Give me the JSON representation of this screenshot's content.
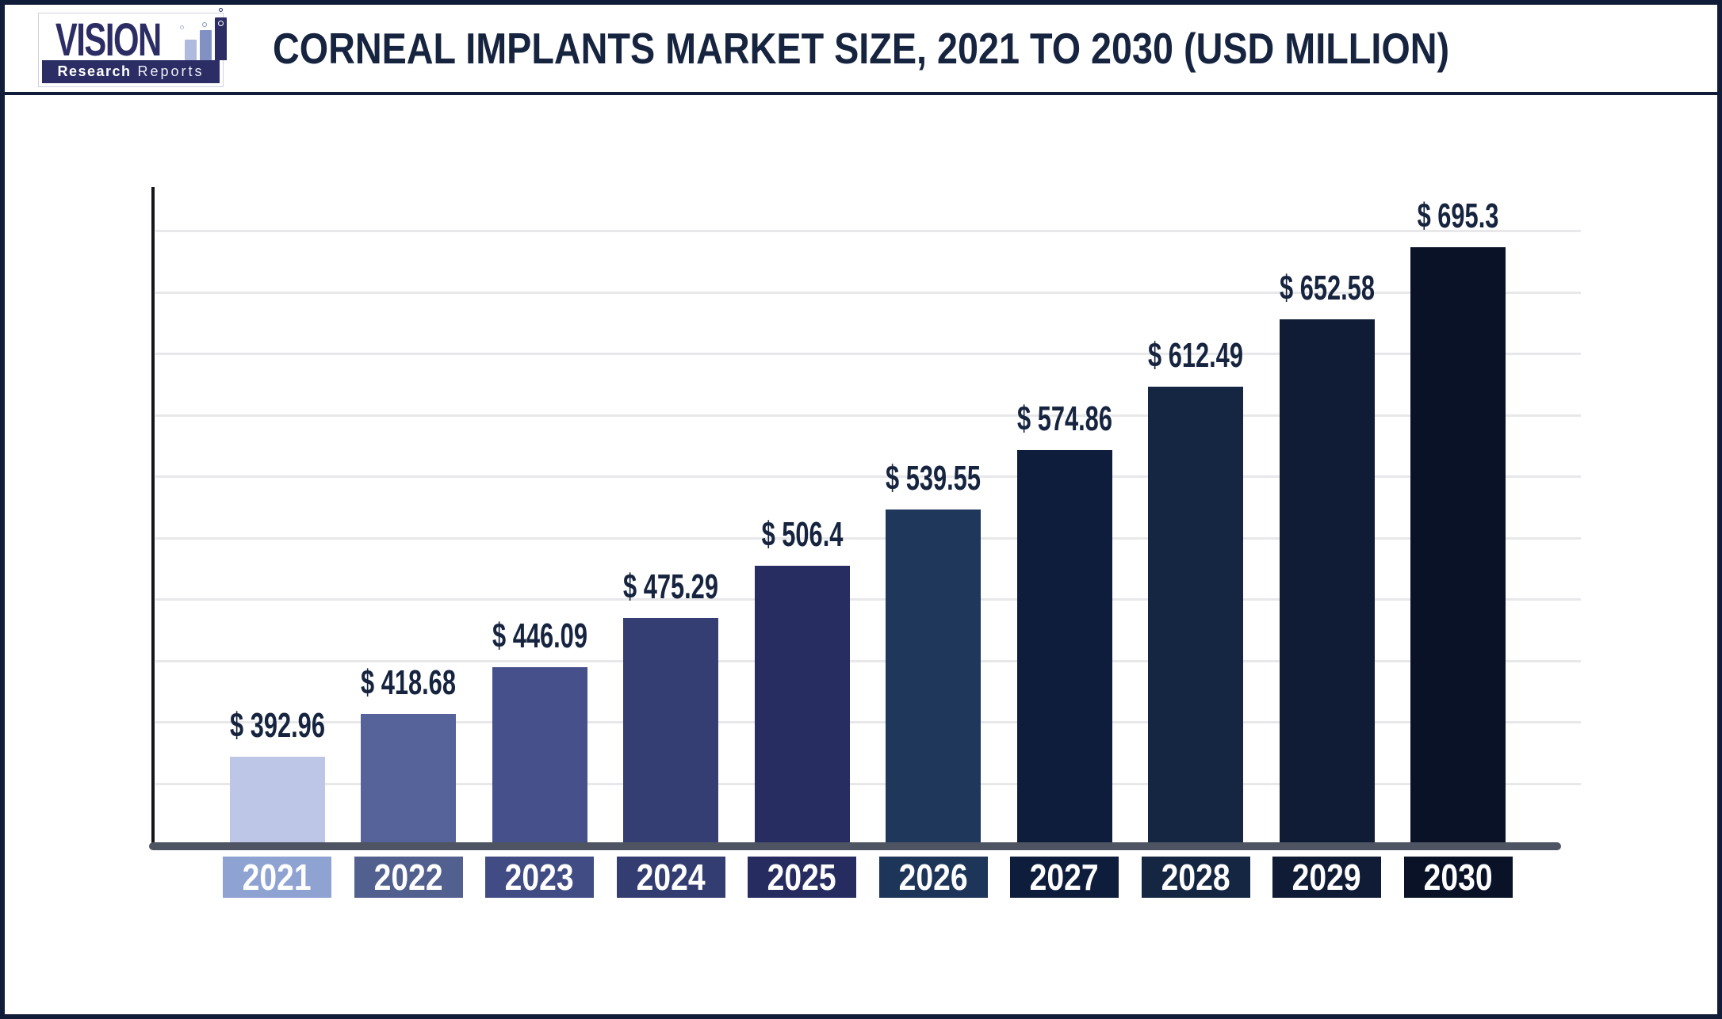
{
  "header": {
    "title": "CORNEAL IMPLANTS MARKET SIZE, 2021 TO 2030 (USD MILLION)",
    "logo": {
      "name": "VISION",
      "sub_bold": "Research",
      "sub_light": "Reports",
      "navy": "#2b2d64",
      "bar_light": "#aebbdf",
      "bar_mid": "#8191c4"
    }
  },
  "chart_data": {
    "type": "bar",
    "title": "CORNEAL IMPLANTS MARKET SIZE, 2021 TO 2030 (USD MILLION)",
    "xlabel": "",
    "ylabel": "",
    "unit": "USD Million",
    "categories": [
      "2021",
      "2022",
      "2023",
      "2024",
      "2025",
      "2026",
      "2027",
      "2028",
      "2029",
      "2030"
    ],
    "values": [
      392.96,
      418.68,
      446.09,
      475.29,
      506.4,
      539.55,
      574.86,
      612.49,
      652.58,
      695.3
    ],
    "labels": [
      "$ 392.96",
      "$ 418.68",
      "$ 446.09",
      "$ 475.29",
      "$ 506.4",
      "$ 539.55",
      "$ 574.86",
      "$ 612.49",
      "$ 652.58",
      "$ 695.3"
    ],
    "bar_colors": [
      "#bdc6e6",
      "#56639a",
      "#46508a",
      "#343e72",
      "#272d60",
      "#20375c",
      "#0f1d3c",
      "#152642",
      "#101c36",
      "#0a1228"
    ],
    "tick_box_colors": [
      "#8fa3d3",
      "#51608f",
      "#414c85",
      "#333d71",
      "#262c5f",
      "#1d3558",
      "#0f1d3c",
      "#152642",
      "#101c36",
      "#0a1228"
    ],
    "label_color": "#16243f",
    "gridline_color": "#e8e8ea",
    "baseline_color": "#4e5462",
    "ylim": [
      340,
      730
    ],
    "gridline_count": 10,
    "grid": "horizontal",
    "y_tick_labels": "none",
    "legend": "none"
  }
}
